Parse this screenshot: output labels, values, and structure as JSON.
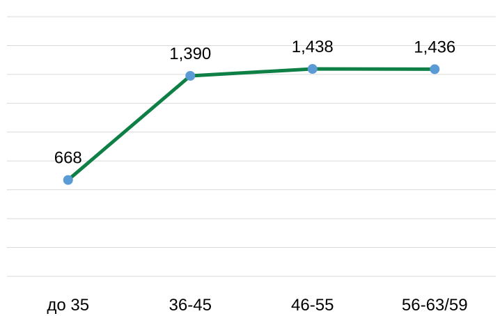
{
  "chart_data": {
    "type": "line",
    "categories": [
      "до 35",
      "36-45",
      "46-55",
      "56-63/59"
    ],
    "series": [
      {
        "values": [
          668,
          1390,
          1438,
          1436
        ],
        "labels": [
          "668",
          "1,390",
          "1,438",
          "1,436"
        ],
        "line_color": "#0e8046",
        "marker_color": "#5b9bd5"
      }
    ],
    "ylim": [
      0,
      1800
    ],
    "y_gridline_step": 200,
    "grid": true,
    "y_axis_labels_shown": false,
    "legend": "none"
  }
}
